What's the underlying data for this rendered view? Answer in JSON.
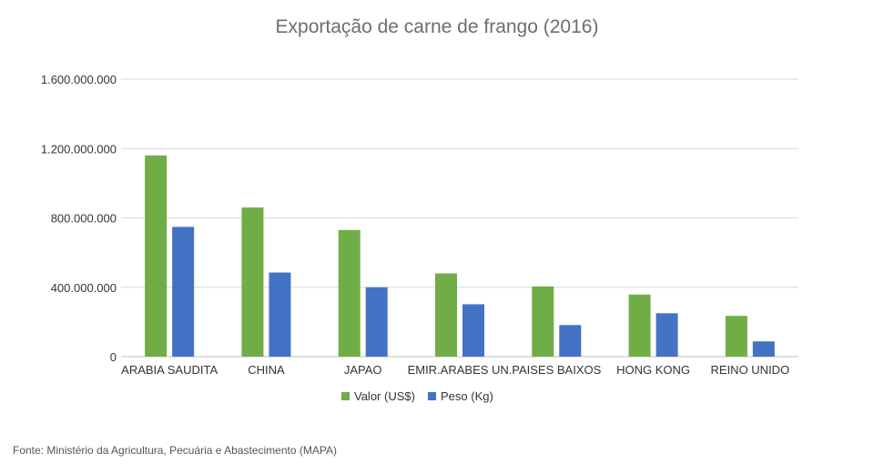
{
  "chart_data": {
    "type": "bar",
    "title": "Exportação de carne de frango (2016)",
    "categories": [
      "ARABIA SAUDITA",
      "CHINA",
      "JAPAO",
      "EMIR.ARABES UN.",
      "PAISES BAIXOS",
      "HONG KONG",
      "REINO UNIDO"
    ],
    "series": [
      {
        "name": "Valor (US$)",
        "color": "#70ad47",
        "values": [
          1160000000,
          860000000,
          730000000,
          480000000,
          405000000,
          358000000,
          235000000
        ]
      },
      {
        "name": "Peso (Kg)",
        "color": "#4472c4",
        "values": [
          748000000,
          485000000,
          400000000,
          302000000,
          182000000,
          250000000,
          88000000
        ]
      }
    ],
    "ylim": [
      0,
      1600000000
    ],
    "yticks": [
      0,
      400000000,
      800000000,
      1200000000,
      1600000000
    ],
    "ytick_labels": [
      "0",
      "400.000.000",
      "800.000.000",
      "1.200.000.000",
      "1.600.000.000"
    ],
    "grid": true,
    "legend_position": "bottom",
    "xlabel": "",
    "ylabel": ""
  },
  "source": "Fonte: Ministério da Agricultura, Pecuária e Abastecimento (MAPA)"
}
